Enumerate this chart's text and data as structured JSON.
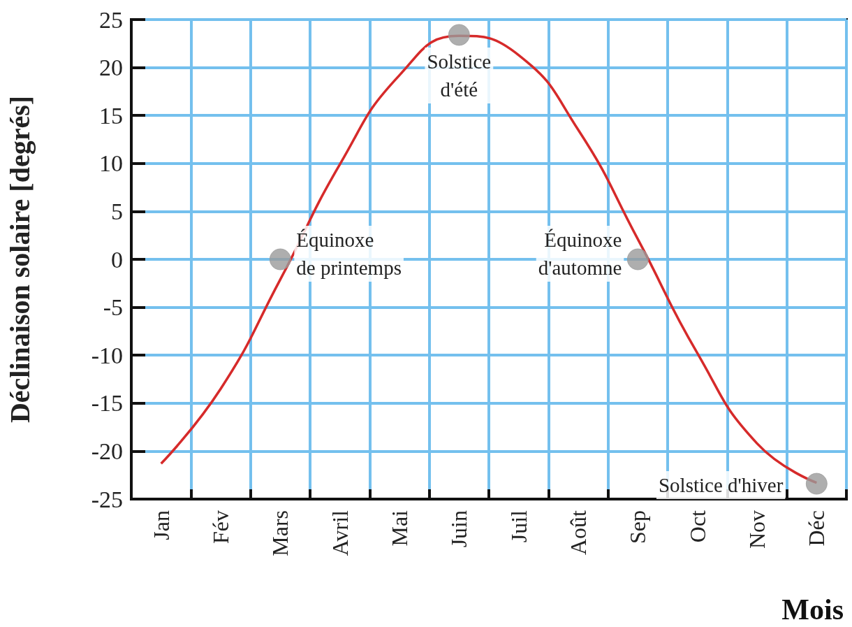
{
  "chart_data": {
    "type": "line",
    "xlabel": "Mois",
    "ylabel": "Déclinaison solaire [degrés]",
    "categories": [
      "Jan",
      "Fév",
      "Mars",
      "Avril",
      "Mai",
      "Juin",
      "Juil",
      "Août",
      "Sep",
      "Oct",
      "Nov",
      "Déc"
    ],
    "series": [
      {
        "color": "#d62a2a",
        "values": [
          -21.3,
          -13.5,
          -2.1,
          9.9,
          19.2,
          23.3,
          21.3,
          13.5,
          2.1,
          -9.8,
          -19.2,
          -23.3
        ]
      },
      {
        "type": "scatter",
        "color": "#9a9a9a",
        "marker": "circle",
        "values": [
          null,
          null,
          0,
          null,
          null,
          23.4,
          null,
          null,
          0,
          null,
          null,
          -23.4
        ]
      }
    ],
    "annotations": [
      "Équinoxe\nde printemps",
      "Solstice\nd'été",
      "Équinoxe\nd'automne",
      "Solstice d'hiver"
    ],
    "ylim": [
      -25,
      25
    ],
    "yticks": [
      -25,
      -20,
      -15,
      -10,
      -5,
      0,
      5,
      10,
      15,
      20,
      25
    ],
    "grid": true
  }
}
